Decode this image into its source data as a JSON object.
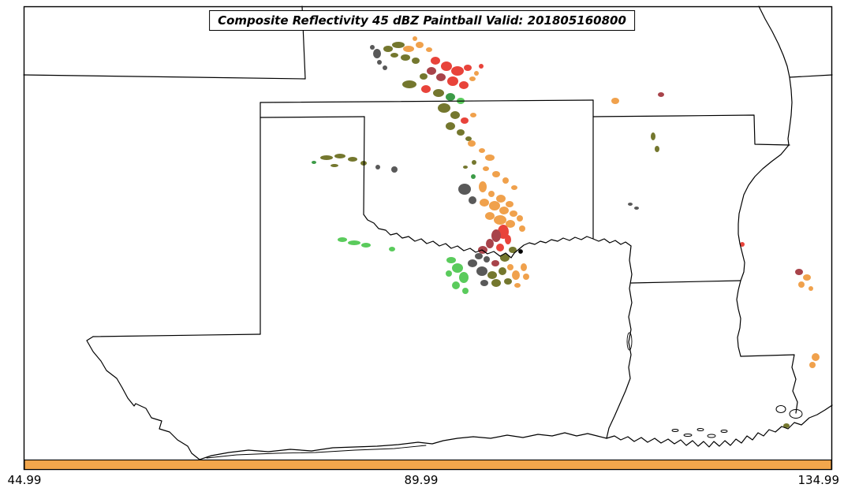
{
  "title_box": {
    "text": "Composite Reflectivity 45 dBZ Paintball Valid: 201805160800"
  },
  "axis": {
    "ticks": [
      "44.99",
      "89.99",
      "134.99"
    ]
  },
  "colorbar": {
    "color": "#F2A64C"
  },
  "chart_data": {
    "type": "paintball-map",
    "title": "Composite Reflectivity 45 dBZ Paintball Valid: 201805160800",
    "variable": "Composite Reflectivity",
    "threshold_dbz": 45,
    "valid_time": "201805160800",
    "x_tick_values": [
      44.99,
      89.99,
      134.99
    ],
    "legend_position": "none",
    "member_colors": {
      "gray": "#595959",
      "olive": "#74772E",
      "orange": "#F0A14C",
      "red": "#E8433A",
      "darkred": "#A8434A",
      "green": "#5ACB5C",
      "darkgreen": "#3C9B47"
    },
    "paintball_format": [
      "x_px",
      "y_px",
      "rx_px",
      "ry_px",
      "member_color"
    ],
    "paintballs": [
      [
        472,
        60,
        3,
        3,
        "gray"
      ],
      [
        478,
        68,
        5,
        6,
        "gray"
      ],
      [
        481,
        79,
        3,
        3,
        "gray"
      ],
      [
        488,
        86,
        3,
        3,
        "gray"
      ],
      [
        492,
        62,
        6,
        4,
        "olive"
      ],
      [
        505,
        57,
        8,
        4,
        "olive"
      ],
      [
        500,
        70,
        5,
        3,
        "olive"
      ],
      [
        526,
        49,
        3,
        3,
        "orange"
      ],
      [
        518,
        62,
        7,
        4,
        "orange"
      ],
      [
        532,
        57,
        5,
        4,
        "orange"
      ],
      [
        544,
        63,
        4,
        3,
        "orange"
      ],
      [
        514,
        73,
        6,
        4,
        "olive"
      ],
      [
        527,
        77,
        5,
        4,
        "olive"
      ],
      [
        552,
        77,
        6,
        5,
        "red"
      ],
      [
        566,
        84,
        7,
        6,
        "red"
      ],
      [
        580,
        90,
        8,
        6,
        "red"
      ],
      [
        593,
        86,
        5,
        4,
        "red"
      ],
      [
        610,
        84,
        3,
        3,
        "red"
      ],
      [
        547,
        90,
        6,
        5,
        "darkred"
      ],
      [
        559,
        98,
        6,
        5,
        "darkred"
      ],
      [
        537,
        97,
        5,
        4,
        "olive"
      ],
      [
        574,
        103,
        7,
        6,
        "red"
      ],
      [
        588,
        108,
        6,
        5,
        "red"
      ],
      [
        599,
        100,
        4,
        3,
        "orange"
      ],
      [
        604,
        93,
        3,
        3,
        "orange"
      ],
      [
        519,
        107,
        9,
        5,
        "olive"
      ],
      [
        540,
        113,
        6,
        5,
        "red"
      ],
      [
        556,
        118,
        7,
        5,
        "olive"
      ],
      [
        571,
        123,
        6,
        5,
        "darkgreen"
      ],
      [
        584,
        128,
        5,
        4,
        "green"
      ],
      [
        563,
        137,
        8,
        6,
        "olive"
      ],
      [
        577,
        146,
        6,
        5,
        "olive"
      ],
      [
        589,
        153,
        5,
        4,
        "red"
      ],
      [
        600,
        146,
        4,
        3,
        "orange"
      ],
      [
        571,
        160,
        6,
        5,
        "olive"
      ],
      [
        584,
        168,
        5,
        4,
        "olive"
      ],
      [
        594,
        176,
        4,
        3,
        "olive"
      ],
      [
        598,
        182,
        5,
        4,
        "orange"
      ],
      [
        611,
        191,
        4,
        3,
        "orange"
      ],
      [
        621,
        200,
        6,
        4,
        "orange"
      ],
      [
        601,
        206,
        3,
        3,
        "olive"
      ],
      [
        616,
        214,
        4,
        3,
        "orange"
      ],
      [
        629,
        221,
        5,
        4,
        "orange"
      ],
      [
        641,
        229,
        4,
        4,
        "orange"
      ],
      [
        652,
        238,
        4,
        3,
        "orange"
      ],
      [
        612,
        237,
        5,
        7,
        "orange"
      ],
      [
        623,
        246,
        4,
        4,
        "orange"
      ],
      [
        635,
        252,
        6,
        5,
        "orange"
      ],
      [
        646,
        259,
        5,
        4,
        "orange"
      ],
      [
        600,
        224,
        3,
        3,
        "darkgreen"
      ],
      [
        590,
        212,
        3,
        2,
        "olive"
      ],
      [
        398,
        206,
        3,
        2,
        "darkgreen"
      ],
      [
        414,
        200,
        8,
        3,
        "olive"
      ],
      [
        431,
        198,
        7,
        3,
        "olive"
      ],
      [
        447,
        202,
        6,
        3,
        "olive"
      ],
      [
        461,
        207,
        4,
        3,
        "olive"
      ],
      [
        424,
        210,
        5,
        2,
        "olive"
      ],
      [
        479,
        212,
        3,
        3,
        "gray"
      ],
      [
        500,
        215,
        4,
        4,
        "gray"
      ],
      [
        589,
        240,
        8,
        7,
        "gray"
      ],
      [
        599,
        254,
        5,
        5,
        "gray"
      ],
      [
        614,
        257,
        6,
        5,
        "orange"
      ],
      [
        627,
        261,
        7,
        6,
        "orange"
      ],
      [
        639,
        267,
        6,
        5,
        "orange"
      ],
      [
        651,
        271,
        5,
        4,
        "orange"
      ],
      [
        621,
        274,
        6,
        5,
        "orange"
      ],
      [
        634,
        279,
        8,
        6,
        "orange"
      ],
      [
        647,
        284,
        6,
        5,
        "orange"
      ],
      [
        659,
        277,
        4,
        4,
        "orange"
      ],
      [
        662,
        290,
        4,
        4,
        "orange"
      ],
      [
        638,
        294,
        7,
        9,
        "red"
      ],
      [
        644,
        304,
        4,
        6,
        "red"
      ],
      [
        634,
        314,
        5,
        5,
        "red"
      ],
      [
        629,
        299,
        6,
        8,
        "darkred"
      ],
      [
        621,
        309,
        5,
        6,
        "darkred"
      ],
      [
        612,
        317,
        6,
        5,
        "darkred"
      ],
      [
        628,
        334,
        5,
        4,
        "darkred"
      ],
      [
        650,
        317,
        5,
        4,
        "olive"
      ],
      [
        640,
        327,
        6,
        5,
        "olive"
      ],
      [
        624,
        349,
        6,
        5,
        "olive"
      ],
      [
        637,
        344,
        5,
        5,
        "olive"
      ],
      [
        644,
        357,
        5,
        4,
        "olive"
      ],
      [
        629,
        359,
        6,
        5,
        "olive"
      ],
      [
        617,
        329,
        4,
        4,
        "gray"
      ],
      [
        607,
        325,
        5,
        4,
        "gray"
      ],
      [
        599,
        334,
        6,
        5,
        "gray"
      ],
      [
        611,
        344,
        7,
        6,
        "gray"
      ],
      [
        614,
        359,
        5,
        4,
        "gray"
      ],
      [
        647,
        339,
        4,
        4,
        "orange"
      ],
      [
        654,
        349,
        5,
        6,
        "orange"
      ],
      [
        664,
        339,
        4,
        5,
        "orange"
      ],
      [
        667,
        351,
        4,
        4,
        "orange"
      ],
      [
        656,
        362,
        4,
        3,
        "orange"
      ],
      [
        572,
        330,
        6,
        4,
        "green"
      ],
      [
        580,
        340,
        7,
        6,
        "green"
      ],
      [
        588,
        352,
        6,
        7,
        "green"
      ],
      [
        578,
        362,
        5,
        5,
        "green"
      ],
      [
        590,
        369,
        4,
        4,
        "green"
      ],
      [
        569,
        347,
        4,
        4,
        "green"
      ],
      [
        434,
        304,
        6,
        3,
        "green"
      ],
      [
        449,
        308,
        8,
        3,
        "green"
      ],
      [
        464,
        311,
        6,
        3,
        "green"
      ],
      [
        497,
        316,
        4,
        3,
        "green"
      ],
      [
        780,
        128,
        5,
        4,
        "orange"
      ],
      [
        838,
        120,
        4,
        3,
        "darkred"
      ],
      [
        828,
        173,
        3,
        5,
        "olive"
      ],
      [
        833,
        189,
        3,
        4,
        "olive"
      ],
      [
        799,
        259,
        3,
        2,
        "gray"
      ],
      [
        807,
        264,
        3,
        2,
        "gray"
      ],
      [
        941,
        310,
        3,
        3,
        "red"
      ],
      [
        1013,
        345,
        5,
        4,
        "darkred"
      ],
      [
        1023,
        352,
        5,
        4,
        "orange"
      ],
      [
        1016,
        361,
        4,
        4,
        "orange"
      ],
      [
        1028,
        366,
        3,
        3,
        "orange"
      ],
      [
        1034,
        453,
        5,
        5,
        "orange"
      ],
      [
        1030,
        463,
        4,
        4,
        "orange"
      ],
      [
        997,
        540,
        4,
        3,
        "olive"
      ]
    ]
  }
}
